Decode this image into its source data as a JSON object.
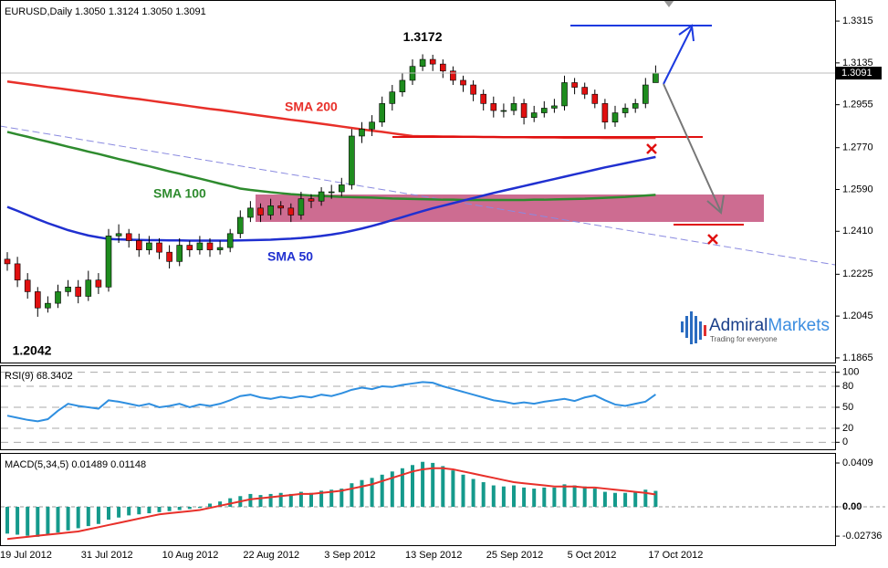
{
  "chart_data": [
    {
      "type": "candlestick",
      "title": "EURUSD,Daily  1.3050 1.3124 1.3050 1.3091",
      "categories": [
        "19 Jul 2012",
        null,
        null,
        null,
        null,
        null,
        null,
        null,
        "31 Jul 2012",
        null,
        null,
        null,
        null,
        null,
        null,
        null,
        "10 Aug 2012",
        null,
        null,
        null,
        null,
        null,
        null,
        null,
        "22 Aug 2012",
        null,
        null,
        null,
        null,
        null,
        null,
        null,
        "3 Sep 2012",
        null,
        null,
        null,
        null,
        null,
        null,
        null,
        "13 Sep 2012",
        null,
        null,
        null,
        null,
        null,
        null,
        null,
        "25 Sep 2012",
        null,
        null,
        null,
        null,
        null,
        null,
        null,
        "5 Oct 2012",
        null,
        null,
        null,
        null,
        null,
        null,
        null,
        "17 Oct 2012"
      ],
      "open": [
        1.229,
        1.227,
        1.22,
        1.215,
        1.208,
        1.21,
        1.215,
        1.217,
        1.213,
        1.22,
        1.217,
        1.239,
        1.24,
        1.237,
        1.233,
        1.236,
        1.232,
        1.228,
        1.235,
        1.233,
        1.236,
        1.233,
        1.234,
        1.24,
        1.247,
        1.251,
        1.248,
        1.252,
        1.251,
        1.248,
        1.255,
        1.254,
        1.258,
        1.258,
        1.261,
        1.282,
        1.285,
        1.288,
        1.296,
        1.301,
        1.306,
        1.312,
        1.315,
        1.313,
        1.31,
        1.306,
        1.304,
        1.3,
        1.296,
        1.293,
        1.293,
        1.296,
        1.29,
        1.292,
        1.294,
        1.295,
        1.305,
        1.303,
        1.3,
        1.296,
        1.288,
        1.292,
        1.294,
        1.296,
        1.305
      ],
      "high": [
        1.232,
        1.23,
        1.223,
        1.217,
        1.213,
        1.218,
        1.22,
        1.22,
        1.224,
        1.223,
        1.242,
        1.244,
        1.242,
        1.24,
        1.239,
        1.238,
        1.235,
        1.238,
        1.237,
        1.239,
        1.238,
        1.237,
        1.242,
        1.25,
        1.254,
        1.253,
        1.255,
        1.254,
        1.253,
        1.258,
        1.257,
        1.26,
        1.261,
        1.264,
        1.285,
        1.288,
        1.291,
        1.299,
        1.304,
        1.309,
        1.315,
        1.3172,
        1.317,
        1.315,
        1.312,
        1.308,
        1.306,
        1.302,
        1.299,
        1.296,
        1.299,
        1.298,
        1.295,
        1.297,
        1.298,
        1.308,
        1.307,
        1.305,
        1.302,
        1.298,
        1.295,
        1.296,
        1.298,
        1.307,
        1.3124
      ],
      "low": [
        1.224,
        1.217,
        1.212,
        1.2042,
        1.206,
        1.208,
        1.213,
        1.21,
        1.211,
        1.214,
        1.215,
        1.236,
        1.234,
        1.23,
        1.231,
        1.229,
        1.225,
        1.226,
        1.23,
        1.231,
        1.23,
        1.231,
        1.232,
        1.238,
        1.245,
        1.245,
        1.246,
        1.248,
        1.245,
        1.246,
        1.251,
        1.252,
        1.255,
        1.256,
        1.259,
        1.279,
        1.282,
        1.286,
        1.293,
        1.299,
        1.304,
        1.31,
        1.31,
        1.307,
        1.304,
        1.301,
        1.297,
        1.293,
        1.29,
        1.29,
        1.291,
        1.287,
        1.288,
        1.29,
        1.292,
        1.293,
        1.3,
        1.298,
        1.294,
        1.285,
        1.286,
        1.29,
        1.292,
        1.294,
        1.305
      ],
      "close": [
        1.227,
        1.22,
        1.215,
        1.208,
        1.21,
        1.215,
        1.217,
        1.213,
        1.22,
        1.217,
        1.239,
        1.24,
        1.237,
        1.233,
        1.236,
        1.232,
        1.228,
        1.235,
        1.233,
        1.236,
        1.233,
        1.234,
        1.24,
        1.247,
        1.251,
        1.248,
        1.252,
        1.251,
        1.248,
        1.255,
        1.254,
        1.258,
        1.258,
        1.261,
        1.282,
        1.285,
        1.288,
        1.296,
        1.301,
        1.306,
        1.312,
        1.315,
        1.313,
        1.31,
        1.306,
        1.304,
        1.3,
        1.296,
        1.293,
        1.293,
        1.296,
        1.29,
        1.292,
        1.294,
        1.295,
        1.305,
        1.303,
        1.3,
        1.296,
        1.288,
        1.292,
        1.294,
        1.296,
        1.304,
        1.3091
      ],
      "up_color": "#1e8c1e",
      "down_color": "#e01010",
      "series": [
        {
          "name": "SMA 200",
          "color": "#e8302a",
          "values": [
            1.3055,
            1.3049,
            1.3043,
            1.3037,
            1.3031,
            1.3026,
            1.302,
            1.3014,
            1.3008,
            1.3002,
            1.2996,
            1.299,
            1.2984,
            1.2979,
            1.2973,
            1.2967,
            1.2961,
            1.2955,
            1.2949,
            1.2943,
            1.2937,
            1.2932,
            1.2926,
            1.292,
            1.2914,
            1.2908,
            1.2902,
            1.2896,
            1.289,
            1.2885,
            1.2879,
            1.2873,
            1.2867,
            1.2861,
            1.2855,
            1.2849,
            1.2843,
            1.2838,
            1.2832,
            1.2826,
            1.282,
            1.2819,
            1.2819,
            1.2818,
            1.2818,
            1.2817,
            1.2817,
            1.2816,
            1.2816,
            1.2815,
            1.2815,
            1.2815,
            1.2814,
            1.2814,
            1.2814,
            1.2813,
            1.2813,
            1.2813,
            1.2813,
            1.2812,
            1.2812,
            1.2812,
            1.2812,
            1.2812,
            1.2812
          ]
        },
        {
          "name": "SMA 100",
          "color": "#2e8b2e",
          "values": [
            1.2838,
            1.2827,
            1.2817,
            1.2806,
            1.2796,
            1.2785,
            1.2774,
            1.2764,
            1.2753,
            1.2743,
            1.2732,
            1.2721,
            1.2711,
            1.27,
            1.269,
            1.2679,
            1.2668,
            1.2658,
            1.2647,
            1.2637,
            1.2626,
            1.2615,
            1.2605,
            1.2594,
            1.2588,
            1.2583,
            1.2578,
            1.2574,
            1.257,
            1.2567,
            1.2564,
            1.2562,
            1.256,
            1.2558,
            1.2557,
            1.2556,
            1.2555,
            1.2553,
            1.2551,
            1.255,
            1.2549,
            1.2548,
            1.2547,
            1.2546,
            1.2546,
            1.2545,
            1.2545,
            1.2545,
            1.2545,
            1.2545,
            1.2545,
            1.2545,
            1.2546,
            1.2546,
            1.2547,
            1.2548,
            1.2549,
            1.255,
            1.2552,
            1.2554,
            1.2556,
            1.2558,
            1.2561,
            1.2564,
            1.2567
          ]
        },
        {
          "name": "SMA 50",
          "color": "#2030d0",
          "values": [
            1.2515,
            1.2498,
            1.248,
            1.2462,
            1.2445,
            1.243,
            1.2415,
            1.2403,
            1.2392,
            1.2384,
            1.2377,
            1.2375,
            1.2374,
            1.2373,
            1.2372,
            1.2372,
            1.2371,
            1.2371,
            1.237,
            1.237,
            1.237,
            1.237,
            1.237,
            1.2371,
            1.2372,
            1.2373,
            1.2374,
            1.2376,
            1.2378,
            1.2381,
            1.2385,
            1.239,
            1.2396,
            1.2403,
            1.2412,
            1.2422,
            1.2433,
            1.2445,
            1.2458,
            1.2471,
            1.2484,
            1.2497,
            1.2509,
            1.252,
            1.2531,
            1.2542,
            1.2553,
            1.2564,
            1.2575,
            1.2585,
            1.2595,
            1.2605,
            1.2615,
            1.2625,
            1.2635,
            1.2645,
            1.2655,
            1.2665,
            1.2675,
            1.2685,
            1.2694,
            1.2703,
            1.2712,
            1.2721,
            1.273
          ]
        }
      ],
      "ylim": [
        1.1845,
        1.339
      ],
      "yticks": [
        1.1865,
        1.2045,
        1.2225,
        {
          "value": 1.241,
          "label": "1.2410"
        },
        {
          "value": 1.259,
          "label": "1.2590"
        },
        {
          "value": 1.277,
          "label": "1.2770"
        },
        1.2955,
        1.3135,
        1.3315
      ],
      "brand": {
        "name_first": "Admiral",
        "name_second": "Markets",
        "tagline": "Trading for everyone"
      }
    },
    {
      "type": "line",
      "title": "RSI(9) 68.3402",
      "color": "#2f8fe0",
      "values": [
        38,
        35,
        32,
        30,
        33,
        45,
        55,
        52,
        50,
        48,
        60,
        58,
        55,
        52,
        55,
        50,
        52,
        55,
        50,
        54,
        52,
        55,
        60,
        66,
        68,
        64,
        62,
        65,
        63,
        66,
        64,
        68,
        66,
        70,
        75,
        78,
        76,
        80,
        79,
        82,
        84,
        86,
        85,
        80,
        76,
        72,
        68,
        64,
        60,
        58,
        55,
        57,
        55,
        58,
        60,
        62,
        59,
        64,
        67,
        60,
        54,
        52,
        55,
        58,
        68.3402
      ],
      "ylim": [
        -10,
        110
      ],
      "yticks": [
        0,
        20,
        50,
        80,
        100
      ]
    },
    {
      "type": "bar",
      "title": "MACD(5,34,5) 0.01489 0.01148",
      "color": "#159a8c",
      "values": [
        -0.025,
        -0.026,
        -0.027,
        -0.028,
        -0.026,
        -0.024,
        -0.022,
        -0.02,
        -0.018,
        -0.016,
        -0.012,
        -0.01,
        -0.008,
        -0.007,
        -0.006,
        -0.005,
        -0.004,
        -0.003,
        -0.002,
        -0.001,
        0.003,
        0.005,
        0.008,
        0.01,
        0.012,
        0.011,
        0.012,
        0.013,
        0.012,
        0.014,
        0.013,
        0.015,
        0.016,
        0.017,
        0.022,
        0.025,
        0.027,
        0.03,
        0.033,
        0.036,
        0.039,
        0.042,
        0.041,
        0.038,
        0.034,
        0.03,
        0.026,
        0.023,
        0.02,
        0.019,
        0.02,
        0.018,
        0.017,
        0.018,
        0.018,
        0.021,
        0.02,
        0.019,
        0.017,
        0.014,
        0.013,
        0.013,
        0.014,
        0.016,
        0.01489
      ],
      "signal": {
        "color": "#e8302a",
        "values": [
          -0.03,
          -0.029,
          -0.028,
          -0.027,
          -0.026,
          -0.025,
          -0.024,
          -0.023,
          -0.021,
          -0.019,
          -0.017,
          -0.015,
          -0.013,
          -0.011,
          -0.009,
          -0.007,
          -0.006,
          -0.005,
          -0.004,
          -0.003,
          -0.001,
          0.001,
          0.003,
          0.005,
          0.007,
          0.008,
          0.009,
          0.01,
          0.011,
          0.012,
          0.012,
          0.013,
          0.014,
          0.015,
          0.017,
          0.019,
          0.021,
          0.024,
          0.027,
          0.03,
          0.033,
          0.035,
          0.036,
          0.036,
          0.035,
          0.033,
          0.031,
          0.029,
          0.027,
          0.025,
          0.023,
          0.022,
          0.021,
          0.02,
          0.019,
          0.019,
          0.019,
          0.018,
          0.018,
          0.017,
          0.016,
          0.015,
          0.014,
          0.013,
          0.01148
        ]
      },
      "ylim": [
        -0.0358,
        0.0503
      ],
      "yticks": [
        -0.02736,
        {
          "value": 0,
          "label": "0.00"
        },
        0.0409
      ]
    }
  ]
}
